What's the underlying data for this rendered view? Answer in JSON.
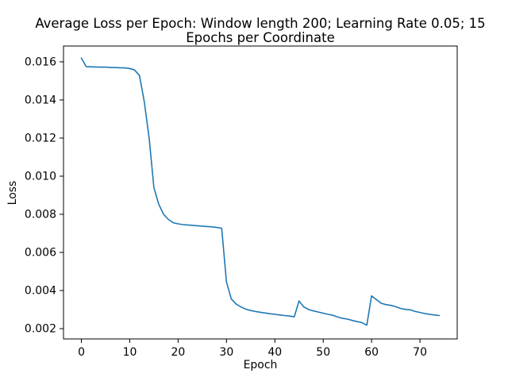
{
  "figure": {
    "title_line1": "Average Loss per Epoch: Window length 200; Learning Rate 0.05; 15",
    "title_line2": "Epochs per Coordinate",
    "background_color": "#ffffff",
    "text_color": "#000000"
  },
  "chart_data": {
    "type": "line",
    "title": "Average Loss per Epoch: Window length 200; Learning Rate 0.05; 15\nEpochs per Coordinate",
    "xlabel": "Epoch",
    "ylabel": "Loss",
    "grid": false,
    "legend": "none",
    "xlim": [
      -3.7,
      77.7
    ],
    "ylim": [
      0.00146,
      0.01683
    ],
    "x_ticks": [
      0,
      10,
      20,
      30,
      40,
      50,
      60,
      70
    ],
    "y_ticks": [
      0.002,
      0.004,
      0.006,
      0.008,
      0.01,
      0.012,
      0.014,
      0.016
    ],
    "y_tick_decimals": 3,
    "x": [
      0,
      1,
      2,
      3,
      4,
      5,
      6,
      7,
      8,
      9,
      10,
      11,
      12,
      13,
      14,
      15,
      16,
      17,
      18,
      19,
      20,
      21,
      22,
      23,
      24,
      25,
      26,
      27,
      28,
      29,
      30,
      31,
      32,
      33,
      34,
      35,
      36,
      37,
      38,
      39,
      40,
      41,
      42,
      43,
      44,
      45,
      46,
      47,
      48,
      49,
      50,
      51,
      52,
      53,
      54,
      55,
      56,
      57,
      58,
      59,
      60,
      61,
      62,
      63,
      64,
      65,
      66,
      67,
      68,
      69,
      70,
      71,
      72,
      73,
      74
    ],
    "series": [
      {
        "name": "average loss",
        "color": "#1f77b4",
        "values": [
          0.0162,
          0.01575,
          0.01574,
          0.01573,
          0.01572,
          0.01572,
          0.01571,
          0.0157,
          0.01569,
          0.01568,
          0.01565,
          0.01557,
          0.01528,
          0.0139,
          0.012,
          0.0094,
          0.00853,
          0.008,
          0.00773,
          0.00756,
          0.0075,
          0.00746,
          0.00744,
          0.00742,
          0.0074,
          0.00738,
          0.00736,
          0.00734,
          0.00731,
          0.00727,
          0.00445,
          0.00356,
          0.00329,
          0.00314,
          0.00302,
          0.00295,
          0.0029,
          0.00286,
          0.00282,
          0.00278,
          0.00275,
          0.00272,
          0.00269,
          0.00266,
          0.00262,
          0.00345,
          0.00314,
          0.003,
          0.00293,
          0.00287,
          0.00281,
          0.00275,
          0.0027,
          0.00261,
          0.00254,
          0.0025,
          0.00243,
          0.00237,
          0.00232,
          0.00218,
          0.00372,
          0.00352,
          0.00333,
          0.00326,
          0.00322,
          0.00315,
          0.00306,
          0.00301,
          0.00299,
          0.0029,
          0.00285,
          0.00279,
          0.00275,
          0.00272,
          0.00269
        ]
      }
    ]
  }
}
